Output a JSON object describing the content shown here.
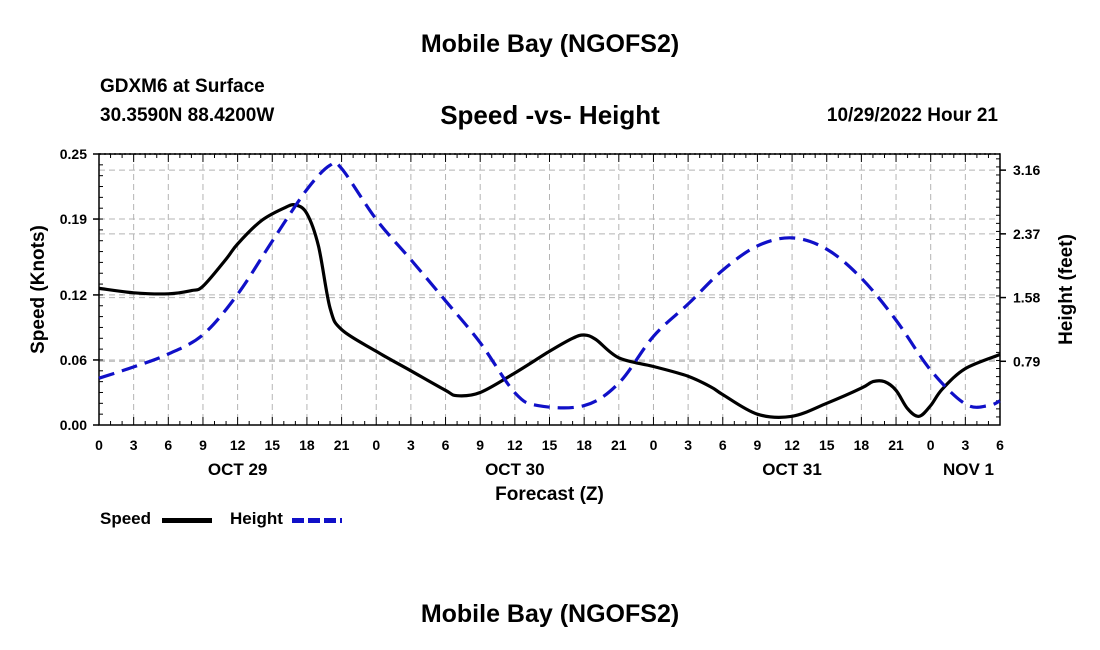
{
  "header": {
    "title": "Mobile Bay (NGOFS2)",
    "station": "GDXM6 at Surface",
    "coordinates": "30.3590N  88.4200W",
    "subtitle": "Speed -vs- Height",
    "datetime": "10/29/2022 Hour 21"
  },
  "footer": {
    "title": "Mobile Bay (NGOFS2)"
  },
  "legend": {
    "speed_label": "Speed",
    "height_label": "Height"
  },
  "colors": {
    "speed": "#000000",
    "height": "#1010c8",
    "grid": "#b4b4b4"
  },
  "chart_data": {
    "type": "line",
    "title": "Speed -vs- Height",
    "xlabel": "Forecast (Z)",
    "ylabel": "Speed (Knots)",
    "y2label": "Height (feet)",
    "x_unit": "hours since OCT 29 00Z",
    "xlim": [
      0,
      78
    ],
    "ylim": [
      0,
      0.25
    ],
    "y2lim": [
      0,
      3.36
    ],
    "x_ticks": [
      0,
      3,
      6,
      9,
      12,
      15,
      18,
      21,
      24,
      27,
      30,
      33,
      36,
      39,
      42,
      45,
      48,
      51,
      54,
      57,
      60,
      63,
      66,
      69,
      72,
      75,
      78
    ],
    "x_tick_labels": [
      "0",
      "3",
      "6",
      "9",
      "12",
      "15",
      "18",
      "21",
      "0",
      "3",
      "6",
      "9",
      "12",
      "15",
      "18",
      "21",
      "0",
      "3",
      "6",
      "9",
      "12",
      "15",
      "18",
      "21",
      "0",
      "3",
      "6"
    ],
    "y_ticks": [
      0,
      0.06,
      0.12,
      0.19,
      0.25
    ],
    "y_tick_labels": [
      "0.00",
      "0.06",
      "0.12",
      "0.19",
      "0.25"
    ],
    "y2_ticks": [
      0.79,
      1.58,
      2.37,
      3.16
    ],
    "y2_tick_labels": [
      "0.79",
      "1.58",
      "2.37",
      "3.16"
    ],
    "date_labels": [
      {
        "x": 12,
        "label": "OCT 29"
      },
      {
        "x": 36,
        "label": "OCT 30"
      },
      {
        "x": 60,
        "label": "OCT 31"
      },
      {
        "x": 78,
        "label": "NOV 1"
      }
    ],
    "series": [
      {
        "name": "Speed",
        "axis": "left",
        "style": "solid",
        "x": [
          0,
          3,
          6,
          8,
          9,
          11,
          12,
          14,
          16,
          17,
          18,
          19,
          20,
          21,
          24,
          27,
          30,
          31,
          33,
          36,
          39,
          41,
          42,
          43,
          45,
          48,
          51,
          53,
          54,
          57,
          60,
          63,
          66,
          67,
          68,
          69,
          70,
          71,
          72,
          73,
          75,
          78
        ],
        "values": [
          0.126,
          0.122,
          0.121,
          0.124,
          0.128,
          0.153,
          0.167,
          0.188,
          0.2,
          0.203,
          0.195,
          0.165,
          0.108,
          0.088,
          0.068,
          0.05,
          0.032,
          0.027,
          0.03,
          0.048,
          0.068,
          0.08,
          0.083,
          0.079,
          0.062,
          0.054,
          0.045,
          0.035,
          0.028,
          0.01,
          0.008,
          0.02,
          0.034,
          0.04,
          0.04,
          0.032,
          0.015,
          0.008,
          0.018,
          0.033,
          0.052,
          0.065
        ]
      },
      {
        "name": "Height",
        "axis": "right",
        "style": "dashed",
        "x": [
          0,
          3,
          6,
          9,
          12,
          15,
          18,
          20,
          21,
          24,
          27,
          30,
          33,
          36,
          38,
          42,
          45,
          48,
          51,
          54,
          57,
          60,
          63,
          66,
          69,
          72,
          75,
          77,
          78
        ],
        "values": [
          0.58,
          0.72,
          0.88,
          1.12,
          1.62,
          2.28,
          2.92,
          3.22,
          3.18,
          2.55,
          2.05,
          1.54,
          1.02,
          0.4,
          0.24,
          0.24,
          0.52,
          1.1,
          1.5,
          1.92,
          2.22,
          2.32,
          2.18,
          1.82,
          1.3,
          0.68,
          0.26,
          0.24,
          0.3
        ]
      }
    ]
  }
}
